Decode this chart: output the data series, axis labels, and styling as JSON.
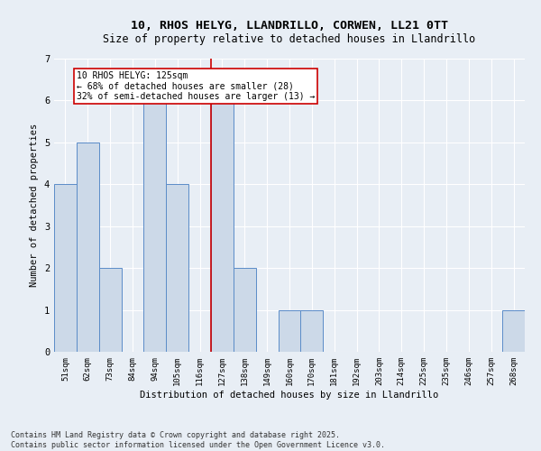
{
  "title_line1": "10, RHOS HELYG, LLANDRILLO, CORWEN, LL21 0TT",
  "title_line2": "Size of property relative to detached houses in Llandrillo",
  "xlabel": "Distribution of detached houses by size in Llandrillo",
  "ylabel": "Number of detached properties",
  "categories": [
    "51sqm",
    "62sqm",
    "73sqm",
    "84sqm",
    "94sqm",
    "105sqm",
    "116sqm",
    "127sqm",
    "138sqm",
    "149sqm",
    "160sqm",
    "170sqm",
    "181sqm",
    "192sqm",
    "203sqm",
    "214sqm",
    "225sqm",
    "235sqm",
    "246sqm",
    "257sqm",
    "268sqm"
  ],
  "values": [
    4,
    5,
    2,
    0,
    6,
    4,
    0,
    6,
    2,
    0,
    1,
    1,
    0,
    0,
    0,
    0,
    0,
    0,
    0,
    0,
    1
  ],
  "bar_color": "#ccd9e8",
  "bar_edge_color": "#5b8cc8",
  "property_line_x": 6.5,
  "annotation_text": "10 RHOS HELYG: 125sqm\n← 68% of detached houses are smaller (28)\n32% of semi-detached houses are larger (13) →",
  "annotation_box_color": "#ffffff",
  "annotation_box_edge": "#cc0000",
  "vline_color": "#cc0000",
  "ylim": [
    0,
    7
  ],
  "yticks": [
    0,
    1,
    2,
    3,
    4,
    5,
    6,
    7
  ],
  "background_color": "#e8eef5",
  "grid_color": "#ffffff",
  "footer_text": "Contains HM Land Registry data © Crown copyright and database right 2025.\nContains public sector information licensed under the Open Government Licence v3.0.",
  "title_fontsize": 9.5,
  "subtitle_fontsize": 8.5,
  "axis_label_fontsize": 7.5,
  "tick_fontsize": 6.5,
  "annotation_fontsize": 7.0,
  "footer_fontsize": 6.0
}
